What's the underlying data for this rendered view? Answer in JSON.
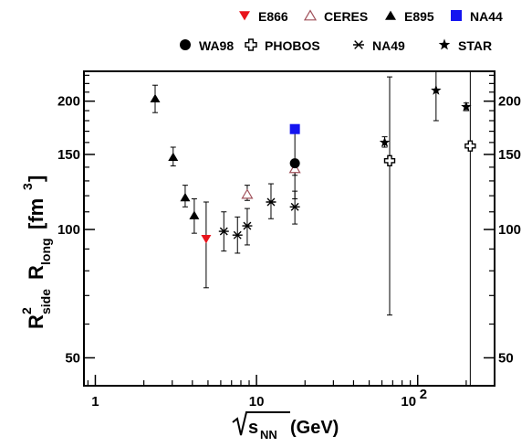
{
  "chart_data": {
    "type": "scatter",
    "xscale": "log",
    "yscale": "log",
    "xlim": [
      0.85,
      300
    ],
    "ylim": [
      43,
      235
    ],
    "x_ticks": [
      {
        "value": 1,
        "label": "1"
      },
      {
        "value": 10,
        "label": "10"
      },
      {
        "value": 100,
        "label": "10",
        "exp": "2"
      }
    ],
    "y_ticks": [
      {
        "value": 50,
        "label": "50"
      },
      {
        "value": 100,
        "label": "100"
      },
      {
        "value": 150,
        "label": "150"
      },
      {
        "value": 200,
        "label": "200"
      }
    ],
    "xlabel": {
      "base": "s",
      "sub": "NN",
      "unit": "(GeV)"
    },
    "ylabel": {
      "r1": "R",
      "r1_sup": "2",
      "r1_sub": "side",
      "r2": "R",
      "r2_sub": "long",
      "unit_open": "[fm",
      "unit_sup": "3",
      "unit_close": "]"
    },
    "legend_position": "top",
    "series": [
      {
        "name": "E866",
        "marker": "triangle-down-filled",
        "color": "#e8141c",
        "points": [
          {
            "x": 4.87,
            "y": 95,
            "ylo": 73,
            "yhi": 116
          }
        ]
      },
      {
        "name": "CERES",
        "marker": "triangle-up-open",
        "color": "#a0505a",
        "points": [
          {
            "x": 8.76,
            "y": 121,
            "ylo": 117,
            "yhi": 127
          },
          {
            "x": 17.3,
            "y": 139,
            "ylo": 134,
            "yhi": 144
          }
        ]
      },
      {
        "name": "E895",
        "marker": "triangle-up-filled",
        "color": "#000000",
        "points": [
          {
            "x": 2.35,
            "y": 203,
            "ylo": 188,
            "yhi": 218
          },
          {
            "x": 3.04,
            "y": 148,
            "ylo": 141,
            "yhi": 156
          },
          {
            "x": 3.61,
            "y": 119,
            "ylo": 113,
            "yhi": 127
          },
          {
            "x": 4.11,
            "y": 108,
            "ylo": 98,
            "yhi": 118
          }
        ]
      },
      {
        "name": "NA44",
        "marker": "square-filled",
        "color": "#1414f0",
        "points": [
          {
            "x": 17.3,
            "y": 172,
            "ylo": 168,
            "yhi": 176
          }
        ]
      },
      {
        "name": "WA98",
        "marker": "circle-filled",
        "color": "#000000",
        "points": [
          {
            "x": 17.3,
            "y": 143,
            "ylo": 118,
            "yhi": 170
          }
        ]
      },
      {
        "name": "PHOBOS",
        "marker": "cross-open",
        "color": "#000000",
        "points": [
          {
            "x": 67,
            "y": 145,
            "ylo": 63,
            "yhi": 228
          },
          {
            "x": 212,
            "y": 157,
            "ylo": 40,
            "yhi": 280
          }
        ]
      },
      {
        "name": "NA49",
        "marker": "asterisk",
        "color": "#000000",
        "points": [
          {
            "x": 6.27,
            "y": 99,
            "ylo": 89,
            "yhi": 110
          },
          {
            "x": 7.62,
            "y": 97,
            "ylo": 88,
            "yhi": 107
          },
          {
            "x": 8.76,
            "y": 102,
            "ylo": 92,
            "yhi": 112
          },
          {
            "x": 12.3,
            "y": 116,
            "ylo": 106,
            "yhi": 128
          },
          {
            "x": 17.3,
            "y": 113,
            "ylo": 103,
            "yhi": 123
          }
        ]
      },
      {
        "name": "STAR",
        "marker": "star-filled",
        "color": "#000000",
        "points": [
          {
            "x": 62.4,
            "y": 160,
            "ylo": 156,
            "yhi": 165
          },
          {
            "x": 130,
            "y": 212,
            "ylo": 180,
            "yhi": 245
          },
          {
            "x": 200,
            "y": 194,
            "ylo": 190,
            "yhi": 198
          }
        ]
      }
    ]
  }
}
